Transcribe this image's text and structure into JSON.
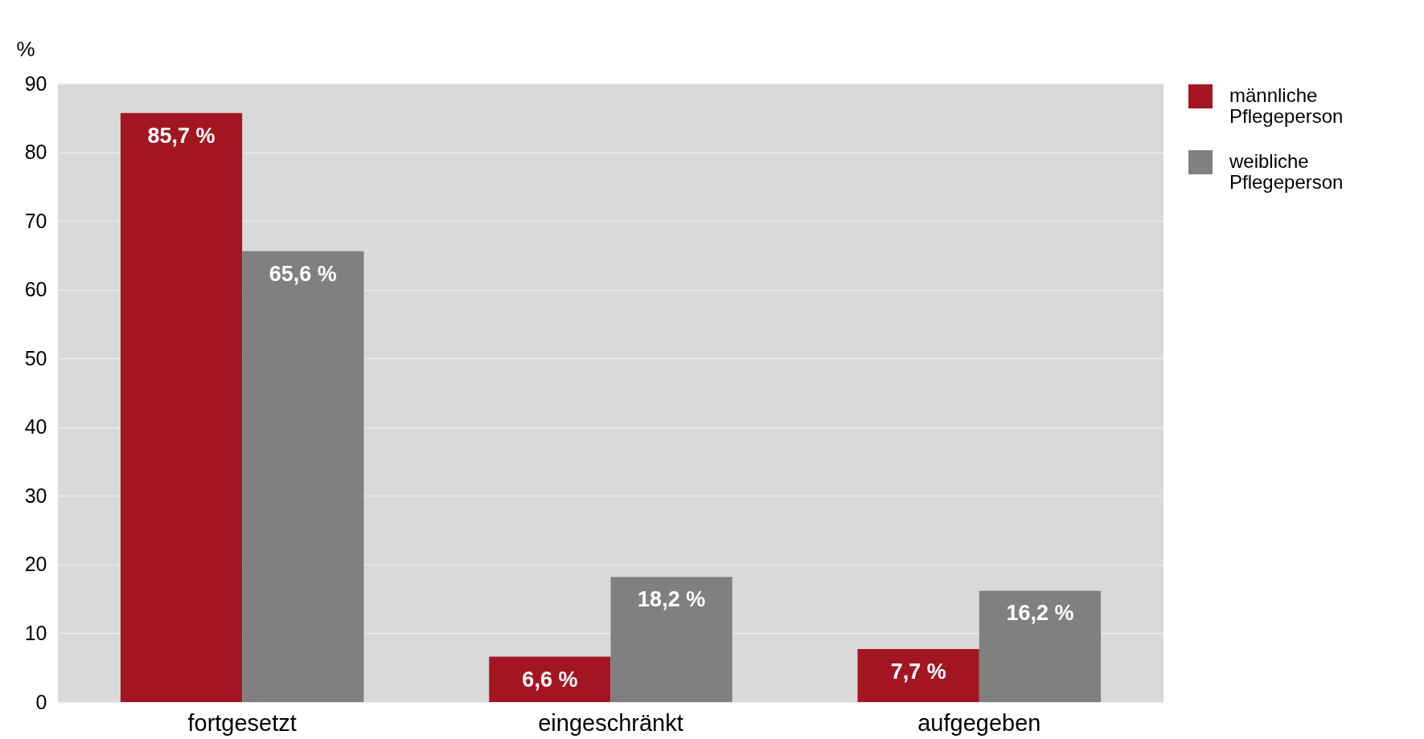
{
  "chart_data": {
    "type": "bar",
    "ylabel": "%",
    "categories": [
      "fortgesetzt",
      "eingeschränkt",
      "aufgegeben"
    ],
    "series": [
      {
        "name": "männliche Pflegeperson",
        "color": "#a31621",
        "values": [
          85.7,
          6.6,
          7.7
        ],
        "value_labels": [
          "85,7 %",
          "6,6 %",
          "7,7 %"
        ]
      },
      {
        "name": "weibliche Pflegeperson",
        "color": "#808080",
        "values": [
          65.6,
          18.2,
          16.2
        ],
        "value_labels": [
          "65,6 %",
          "18,2 %",
          "16,2 %"
        ]
      }
    ],
    "ylim": [
      0,
      90
    ],
    "yticks": [
      0,
      10,
      20,
      30,
      40,
      50,
      60,
      70,
      80,
      90
    ],
    "grid": "y",
    "legend": "top right"
  }
}
